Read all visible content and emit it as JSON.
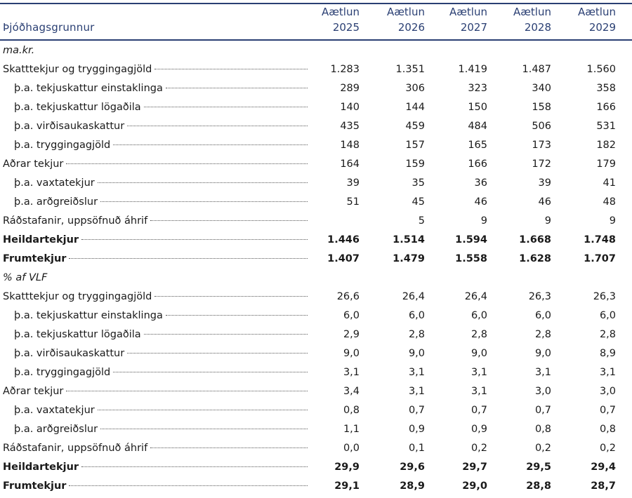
{
  "header": {
    "label": "Þjóðhagsgrunnur",
    "columns": [
      {
        "top": "Aætlun",
        "year": "2025"
      },
      {
        "top": "Aætlun",
        "year": "2026"
      },
      {
        "top": "Aætlun",
        "year": "2027"
      },
      {
        "top": "Aætlun",
        "year": "2028"
      },
      {
        "top": "Aætlun",
        "year": "2029"
      }
    ]
  },
  "sections": [
    {
      "unit": "ma.kr.",
      "rows": [
        {
          "label": "Skatttekjur og tryggingagjöld",
          "indent": 0,
          "bold": false,
          "values": [
            "1.283",
            "1.351",
            "1.419",
            "1.487",
            "1.560"
          ]
        },
        {
          "label": "þ.a. tekjuskattur einstaklinga",
          "indent": 1,
          "bold": false,
          "values": [
            "289",
            "306",
            "323",
            "340",
            "358"
          ]
        },
        {
          "label": "þ.a. tekjuskattur lögaðila",
          "indent": 1,
          "bold": false,
          "values": [
            "140",
            "144",
            "150",
            "158",
            "166"
          ]
        },
        {
          "label": "þ.a. virðisaukaskattur",
          "indent": 1,
          "bold": false,
          "values": [
            "435",
            "459",
            "484",
            "506",
            "531"
          ]
        },
        {
          "label": "þ.a. tryggingagjöld",
          "indent": 1,
          "bold": false,
          "values": [
            "148",
            "157",
            "165",
            "173",
            "182"
          ]
        },
        {
          "label": "Aðrar tekjur",
          "indent": 0,
          "bold": false,
          "values": [
            "164",
            "159",
            "166",
            "172",
            "179"
          ]
        },
        {
          "label": "þ.a. vaxtatekjur",
          "indent": 1,
          "bold": false,
          "values": [
            "39",
            "35",
            "36",
            "39",
            "41"
          ]
        },
        {
          "label": "þ.a. arðgreiðslur",
          "indent": 1,
          "bold": false,
          "values": [
            "51",
            "45",
            "46",
            "46",
            "48"
          ]
        },
        {
          "label": "Ráðstafanir, uppsöfnuð áhrif",
          "indent": 0,
          "bold": false,
          "values": [
            "",
            "5",
            "9",
            "9",
            "9"
          ]
        },
        {
          "label": "Heildartekjur",
          "indent": 0,
          "bold": true,
          "values": [
            "1.446",
            "1.514",
            "1.594",
            "1.668",
            "1.748"
          ]
        },
        {
          "label": "Frumtekjur",
          "indent": 0,
          "bold": true,
          "values": [
            "1.407",
            "1.479",
            "1.558",
            "1.628",
            "1.707"
          ]
        }
      ]
    },
    {
      "unit": "% af VLF",
      "rows": [
        {
          "label": "Skatttekjur og tryggingagjöld",
          "indent": 0,
          "bold": false,
          "values": [
            "26,6",
            "26,4",
            "26,4",
            "26,3",
            "26,3"
          ]
        },
        {
          "label": "þ.a. tekjuskattur einstaklinga",
          "indent": 1,
          "bold": false,
          "values": [
            "6,0",
            "6,0",
            "6,0",
            "6,0",
            "6,0"
          ]
        },
        {
          "label": "þ.a. tekjuskattur lögaðila",
          "indent": 1,
          "bold": false,
          "values": [
            "2,9",
            "2,8",
            "2,8",
            "2,8",
            "2,8"
          ]
        },
        {
          "label": "þ.a. virðisaukaskattur",
          "indent": 1,
          "bold": false,
          "values": [
            "9,0",
            "9,0",
            "9,0",
            "9,0",
            "8,9"
          ]
        },
        {
          "label": "þ.a. tryggingagjöld",
          "indent": 1,
          "bold": false,
          "values": [
            "3,1",
            "3,1",
            "3,1",
            "3,1",
            "3,1"
          ]
        },
        {
          "label": "Aðrar tekjur",
          "indent": 0,
          "bold": false,
          "values": [
            "3,4",
            "3,1",
            "3,1",
            "3,0",
            "3,0"
          ]
        },
        {
          "label": "þ.a. vaxtatekjur",
          "indent": 1,
          "bold": false,
          "values": [
            "0,8",
            "0,7",
            "0,7",
            "0,7",
            "0,7"
          ]
        },
        {
          "label": "þ.a. arðgreiðslur",
          "indent": 1,
          "bold": false,
          "values": [
            "1,1",
            "0,9",
            "0,9",
            "0,8",
            "0,8"
          ]
        },
        {
          "label": "Ráðstafanir, uppsöfnuð áhrif",
          "indent": 0,
          "bold": false,
          "values": [
            "0,0",
            "0,1",
            "0,2",
            "0,2",
            "0,2"
          ]
        },
        {
          "label": "Heildartekjur",
          "indent": 0,
          "bold": true,
          "values": [
            "29,9",
            "29,6",
            "29,7",
            "29,5",
            "29,4"
          ]
        },
        {
          "label": "Frumtekjur",
          "indent": 0,
          "bold": true,
          "values": [
            "29,1",
            "28,9",
            "29,0",
            "28,8",
            "28,7"
          ]
        }
      ]
    }
  ]
}
